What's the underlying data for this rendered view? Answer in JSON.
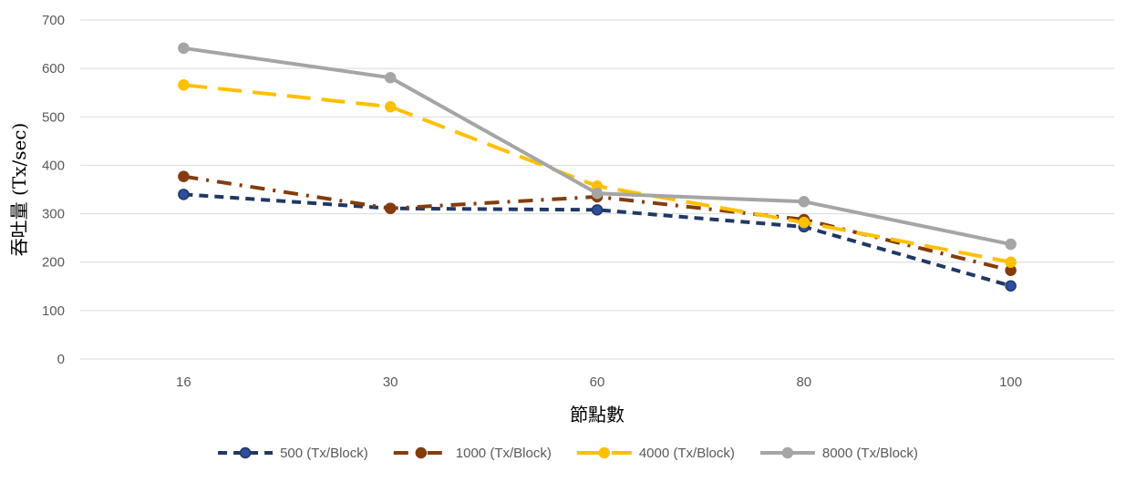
{
  "chart_data": {
    "type": "line",
    "title": "",
    "xlabel": "節點數",
    "ylabel": "吞吐量 (Tx/sec)",
    "categories": [
      "16",
      "30",
      "60",
      "80",
      "100"
    ],
    "ylim": [
      0,
      700
    ],
    "yticks": [
      0,
      100,
      200,
      300,
      400,
      500,
      600,
      700
    ],
    "grid": "horizontal",
    "legend_position": "bottom",
    "series": [
      {
        "name": "500 (Tx/Block)",
        "values": [
          340,
          311,
          308,
          273,
          151
        ],
        "color": "#203864",
        "marker_fill": "#2E4E9E",
        "dash": "short-dash"
      },
      {
        "name": "1000 (Tx/Block)",
        "values": [
          377,
          311,
          335,
          288,
          183
        ],
        "color": "#843C0C",
        "marker_fill": "#843C0C",
        "dash": "dash-dot"
      },
      {
        "name": "4000 (Tx/Block)",
        "values": [
          566,
          521,
          357,
          282,
          200
        ],
        "color": "#FFC000",
        "marker_fill": "#FFC000",
        "dash": "long-dash"
      },
      {
        "name": "8000 (Tx/Block)",
        "values": [
          642,
          581,
          342,
          325,
          237
        ],
        "color": "#A5A5A5",
        "marker_fill": "#A5A5A5",
        "dash": "solid"
      }
    ]
  }
}
